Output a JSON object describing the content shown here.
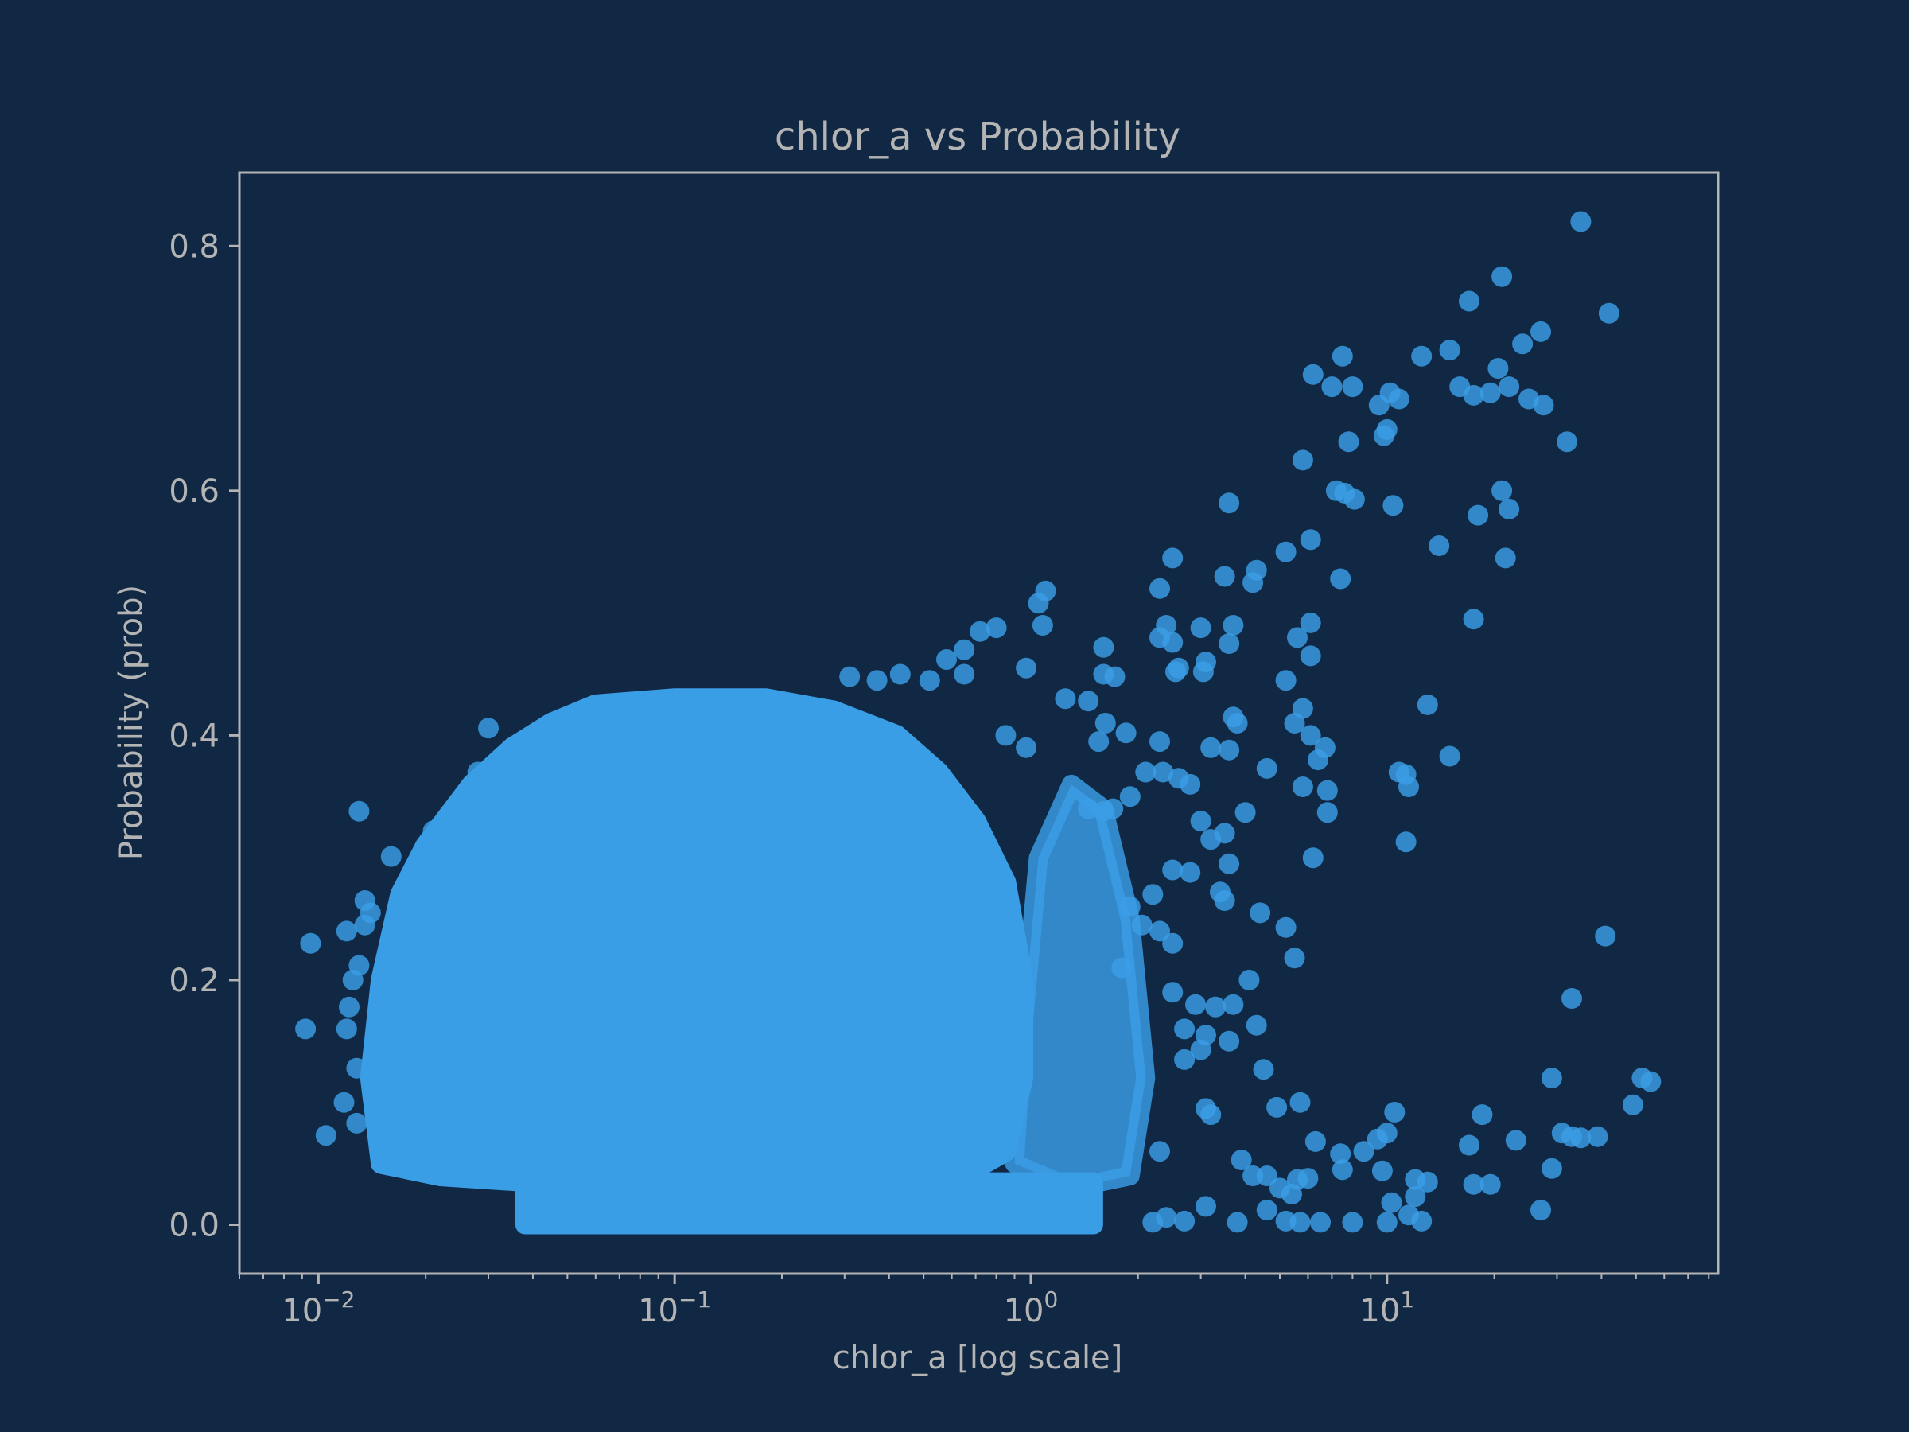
{
  "chart_data": {
    "type": "scatter",
    "title": "chlor_a vs Probability",
    "xlabel": "chlor_a [log scale]",
    "ylabel": "Probability (prob)",
    "x_scale": "log",
    "xlim": [
      0.006,
      85
    ],
    "ylim": [
      -0.04,
      0.86
    ],
    "x_ticks": [
      {
        "value": 0.01,
        "base": "10",
        "exp": "−2"
      },
      {
        "value": 0.1,
        "base": "10",
        "exp": "−1"
      },
      {
        "value": 1,
        "base": "10",
        "exp": "0"
      },
      {
        "value": 10,
        "base": "10",
        "exp": "1"
      }
    ],
    "y_ticks": [
      {
        "value": 0.0,
        "label": "0.0"
      },
      {
        "value": 0.2,
        "label": "0.2"
      },
      {
        "value": 0.4,
        "label": "0.4"
      },
      {
        "value": 0.6,
        "label": "0.6"
      },
      {
        "value": 0.8,
        "label": "0.8"
      }
    ],
    "grid": false,
    "marker_color": "#3a9ee6",
    "background_color": "#102843",
    "frame_color": "#b4b4b4",
    "dense_regions": [
      {
        "x_range": [
          0.014,
          0.9
        ],
        "y_range": [
          0.04,
          0.43
        ],
        "description": "solid cloud"
      },
      {
        "x_range": [
          0.036,
          1.5
        ],
        "y_range": [
          0.0,
          0.04
        ],
        "description": "band near zero"
      }
    ],
    "points": [
      [
        35,
        0.82
      ],
      [
        21,
        0.775
      ],
      [
        17,
        0.755
      ],
      [
        42,
        0.745
      ],
      [
        27,
        0.73
      ],
      [
        24,
        0.72
      ],
      [
        15,
        0.715
      ],
      [
        12.5,
        0.71
      ],
      [
        7.5,
        0.71
      ],
      [
        20.5,
        0.7
      ],
      [
        22,
        0.685
      ],
      [
        16,
        0.685
      ],
      [
        6.2,
        0.695
      ],
      [
        7,
        0.685
      ],
      [
        8,
        0.685
      ],
      [
        10.2,
        0.68
      ],
      [
        10.8,
        0.675
      ],
      [
        9.5,
        0.67
      ],
      [
        17.5,
        0.678
      ],
      [
        19.5,
        0.68
      ],
      [
        25,
        0.675
      ],
      [
        27.5,
        0.67
      ],
      [
        10,
        0.65
      ],
      [
        9.8,
        0.645
      ],
      [
        7.8,
        0.64
      ],
      [
        32,
        0.64
      ],
      [
        5.8,
        0.625
      ],
      [
        3.6,
        0.59
      ],
      [
        7.2,
        0.6
      ],
      [
        7.6,
        0.598
      ],
      [
        8.1,
        0.593
      ],
      [
        10.4,
        0.588
      ],
      [
        21,
        0.6
      ],
      [
        22,
        0.585
      ],
      [
        18,
        0.58
      ],
      [
        14,
        0.555
      ],
      [
        6.1,
        0.56
      ],
      [
        5.2,
        0.55
      ],
      [
        2.5,
        0.545
      ],
      [
        21.5,
        0.545
      ],
      [
        4.3,
        0.535
      ],
      [
        3.5,
        0.53
      ],
      [
        4.2,
        0.525
      ],
      [
        7.4,
        0.528
      ],
      [
        1.1,
        0.518
      ],
      [
        1.05,
        0.508
      ],
      [
        2.3,
        0.52
      ],
      [
        17.5,
        0.495
      ],
      [
        6.1,
        0.492
      ],
      [
        3,
        0.488
      ],
      [
        2.4,
        0.49
      ],
      [
        3.7,
        0.49
      ],
      [
        1.08,
        0.49
      ],
      [
        0.8,
        0.488
      ],
      [
        0.72,
        0.485
      ],
      [
        5.6,
        0.48
      ],
      [
        2.3,
        0.48
      ],
      [
        2.5,
        0.476
      ],
      [
        3.6,
        0.475
      ],
      [
        1.6,
        0.472
      ],
      [
        0.65,
        0.47
      ],
      [
        6.1,
        0.465
      ],
      [
        3.1,
        0.46
      ],
      [
        2.6,
        0.455
      ],
      [
        0.58,
        0.462
      ],
      [
        1.6,
        0.45
      ],
      [
        1.72,
        0.448
      ],
      [
        0.97,
        0.455
      ],
      [
        0.43,
        0.45
      ],
      [
        0.31,
        0.448
      ],
      [
        0.52,
        0.445
      ],
      [
        5.2,
        0.445
      ],
      [
        0.37,
        0.445
      ],
      [
        0.65,
        0.45
      ],
      [
        3.05,
        0.452
      ],
      [
        2.55,
        0.452
      ],
      [
        1.25,
        0.43
      ],
      [
        1.45,
        0.428
      ],
      [
        13,
        0.425
      ],
      [
        5.8,
        0.422
      ],
      [
        1.62,
        0.41
      ],
      [
        3.7,
        0.415
      ],
      [
        5.5,
        0.41
      ],
      [
        3.8,
        0.41
      ],
      [
        6.1,
        0.4
      ],
      [
        6.7,
        0.39
      ],
      [
        1.85,
        0.402
      ],
      [
        1.55,
        0.395
      ],
      [
        0.85,
        0.4
      ],
      [
        0.97,
        0.39
      ],
      [
        2.3,
        0.395
      ],
      [
        3.2,
        0.39
      ],
      [
        3.6,
        0.388
      ],
      [
        15,
        0.383
      ],
      [
        6.4,
        0.38
      ],
      [
        4.6,
        0.373
      ],
      [
        10.8,
        0.37
      ],
      [
        11.3,
        0.368
      ],
      [
        11.5,
        0.358
      ],
      [
        6.8,
        0.355
      ],
      [
        5.8,
        0.358
      ],
      [
        2.1,
        0.37
      ],
      [
        2.35,
        0.37
      ],
      [
        2.6,
        0.365
      ],
      [
        2.8,
        0.36
      ],
      [
        1.9,
        0.35
      ],
      [
        1.45,
        0.34
      ],
      [
        4,
        0.337
      ],
      [
        6.8,
        0.337
      ],
      [
        1.7,
        0.34
      ],
      [
        1.6,
        0.338
      ],
      [
        3,
        0.33
      ],
      [
        3.5,
        0.32
      ],
      [
        3.2,
        0.315
      ],
      [
        11.3,
        0.313
      ],
      [
        6.2,
        0.3
      ],
      [
        3.6,
        0.295
      ],
      [
        2.5,
        0.29
      ],
      [
        2.8,
        0.288
      ],
      [
        3.4,
        0.272
      ],
      [
        3.5,
        0.265
      ],
      [
        2.2,
        0.27
      ],
      [
        4.4,
        0.255
      ],
      [
        1.9,
        0.26
      ],
      [
        5.2,
        0.243
      ],
      [
        2.05,
        0.245
      ],
      [
        2.3,
        0.24
      ],
      [
        2.5,
        0.23
      ],
      [
        5.5,
        0.218
      ],
      [
        1.8,
        0.21
      ],
      [
        4.1,
        0.2
      ],
      [
        2.5,
        0.19
      ],
      [
        2.9,
        0.18
      ],
      [
        3.7,
        0.18
      ],
      [
        3.3,
        0.178
      ],
      [
        4.3,
        0.163
      ],
      [
        2.7,
        0.16
      ],
      [
        3.1,
        0.155
      ],
      [
        3.6,
        0.15
      ],
      [
        3,
        0.143
      ],
      [
        2.7,
        0.135
      ],
      [
        4.5,
        0.127
      ],
      [
        41,
        0.236
      ],
      [
        33,
        0.185
      ],
      [
        29,
        0.12
      ],
      [
        52,
        0.12
      ],
      [
        55,
        0.117
      ],
      [
        49,
        0.098
      ],
      [
        18.5,
        0.09
      ],
      [
        10.5,
        0.092
      ],
      [
        5.7,
        0.1
      ],
      [
        4.9,
        0.096
      ],
      [
        3.1,
        0.095
      ],
      [
        3.2,
        0.09
      ],
      [
        31,
        0.075
      ],
      [
        33,
        0.072
      ],
      [
        35,
        0.071
      ],
      [
        39,
        0.072
      ],
      [
        23,
        0.069
      ],
      [
        17,
        0.065
      ],
      [
        10,
        0.075
      ],
      [
        9.4,
        0.07
      ],
      [
        8.6,
        0.06
      ],
      [
        7.4,
        0.058
      ],
      [
        6.3,
        0.068
      ],
      [
        3.9,
        0.053
      ],
      [
        2.3,
        0.06
      ],
      [
        4.6,
        0.04
      ],
      [
        12,
        0.037
      ],
      [
        13,
        0.035
      ],
      [
        17.5,
        0.033
      ],
      [
        19.5,
        0.033
      ],
      [
        29,
        0.046
      ],
      [
        9.7,
        0.044
      ],
      [
        7.5,
        0.045
      ],
      [
        6,
        0.038
      ],
      [
        5.6,
        0.037
      ],
      [
        4.2,
        0.04
      ],
      [
        5,
        0.03
      ],
      [
        5.4,
        0.025
      ],
      [
        10.3,
        0.018
      ],
      [
        12,
        0.023
      ],
      [
        11.5,
        0.008
      ],
      [
        10,
        0.002
      ],
      [
        12.5,
        0.003
      ],
      [
        8,
        0.002
      ],
      [
        6.5,
        0.002
      ],
      [
        5.7,
        0.002
      ],
      [
        5.2,
        0.003
      ],
      [
        4.6,
        0.012
      ],
      [
        3.8,
        0.002
      ],
      [
        3.1,
        0.015
      ],
      [
        2.7,
        0.003
      ],
      [
        2.4,
        0.006
      ],
      [
        2.2,
        0.002
      ],
      [
        27,
        0.012
      ],
      [
        0.0095,
        0.23
      ],
      [
        0.0092,
        0.16
      ],
      [
        0.0105,
        0.073
      ],
      [
        0.013,
        0.338
      ],
      [
        0.012,
        0.24
      ],
      [
        0.0125,
        0.2
      ],
      [
        0.0122,
        0.178
      ],
      [
        0.0118,
        0.1
      ],
      [
        0.0128,
        0.083
      ],
      [
        0.03,
        0.406
      ],
      [
        0.028,
        0.37
      ],
      [
        0.024,
        0.338
      ],
      [
        0.021,
        0.322
      ],
      [
        0.0135,
        0.265
      ],
      [
        0.014,
        0.255
      ],
      [
        0.013,
        0.212
      ],
      [
        0.012,
        0.16
      ],
      [
        0.0128,
        0.128
      ],
      [
        0.0135,
        0.245
      ],
      [
        0.016,
        0.301
      ]
    ]
  }
}
